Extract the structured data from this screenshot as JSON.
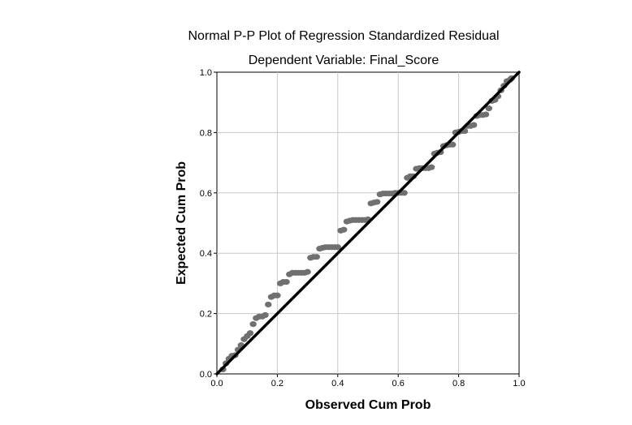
{
  "chart_data": {
    "type": "scatter",
    "title": "Normal P-P Plot of Regression Standardized Residual",
    "subtitle": "Dependent Variable: Final_Score",
    "xlabel": "Observed Cum Prob",
    "ylabel": "Expected Cum Prob",
    "xlim": [
      0.0,
      1.0
    ],
    "ylim": [
      0.0,
      1.0
    ],
    "x_ticks": [
      "0.0",
      "0.2",
      "0.4",
      "0.6",
      "0.8",
      "1.0"
    ],
    "y_ticks": [
      "0.0",
      "0.2",
      "0.4",
      "0.6",
      "0.8",
      "1.0"
    ],
    "grid": true,
    "reference_line": {
      "from": [
        0,
        0
      ],
      "to": [
        1,
        1
      ],
      "color": "#000000"
    },
    "point_color": "#707070",
    "points": [
      [
        0.02,
        0.015
      ],
      [
        0.03,
        0.035
      ],
      [
        0.04,
        0.05
      ],
      [
        0.05,
        0.06
      ],
      [
        0.06,
        0.062
      ],
      [
        0.07,
        0.08
      ],
      [
        0.08,
        0.095
      ],
      [
        0.09,
        0.115
      ],
      [
        0.1,
        0.125
      ],
      [
        0.11,
        0.135
      ],
      [
        0.12,
        0.165
      ],
      [
        0.13,
        0.185
      ],
      [
        0.14,
        0.19
      ],
      [
        0.15,
        0.19
      ],
      [
        0.16,
        0.195
      ],
      [
        0.17,
        0.23
      ],
      [
        0.18,
        0.255
      ],
      [
        0.19,
        0.26
      ],
      [
        0.2,
        0.26
      ],
      [
        0.21,
        0.3
      ],
      [
        0.22,
        0.305
      ],
      [
        0.23,
        0.305
      ],
      [
        0.24,
        0.33
      ],
      [
        0.25,
        0.335
      ],
      [
        0.26,
        0.335
      ],
      [
        0.27,
        0.335
      ],
      [
        0.28,
        0.335
      ],
      [
        0.29,
        0.335
      ],
      [
        0.3,
        0.338
      ],
      [
        0.31,
        0.385
      ],
      [
        0.32,
        0.388
      ],
      [
        0.33,
        0.388
      ],
      [
        0.34,
        0.415
      ],
      [
        0.35,
        0.418
      ],
      [
        0.36,
        0.42
      ],
      [
        0.37,
        0.42
      ],
      [
        0.38,
        0.42
      ],
      [
        0.39,
        0.42
      ],
      [
        0.4,
        0.42
      ],
      [
        0.41,
        0.475
      ],
      [
        0.42,
        0.478
      ],
      [
        0.43,
        0.505
      ],
      [
        0.44,
        0.508
      ],
      [
        0.45,
        0.51
      ],
      [
        0.46,
        0.51
      ],
      [
        0.47,
        0.51
      ],
      [
        0.48,
        0.51
      ],
      [
        0.49,
        0.51
      ],
      [
        0.5,
        0.512
      ],
      [
        0.51,
        0.565
      ],
      [
        0.52,
        0.568
      ],
      [
        0.53,
        0.57
      ],
      [
        0.54,
        0.595
      ],
      [
        0.55,
        0.598
      ],
      [
        0.56,
        0.598
      ],
      [
        0.57,
        0.598
      ],
      [
        0.58,
        0.598
      ],
      [
        0.59,
        0.6
      ],
      [
        0.6,
        0.6
      ],
      [
        0.61,
        0.6
      ],
      [
        0.62,
        0.6
      ],
      [
        0.63,
        0.65
      ],
      [
        0.64,
        0.655
      ],
      [
        0.65,
        0.655
      ],
      [
        0.66,
        0.68
      ],
      [
        0.67,
        0.682
      ],
      [
        0.68,
        0.682
      ],
      [
        0.69,
        0.682
      ],
      [
        0.7,
        0.682
      ],
      [
        0.71,
        0.685
      ],
      [
        0.72,
        0.73
      ],
      [
        0.73,
        0.733
      ],
      [
        0.74,
        0.735
      ],
      [
        0.75,
        0.755
      ],
      [
        0.76,
        0.758
      ],
      [
        0.77,
        0.76
      ],
      [
        0.78,
        0.76
      ],
      [
        0.79,
        0.8
      ],
      [
        0.8,
        0.802
      ],
      [
        0.81,
        0.805
      ],
      [
        0.82,
        0.805
      ],
      [
        0.83,
        0.822
      ],
      [
        0.84,
        0.822
      ],
      [
        0.85,
        0.825
      ],
      [
        0.86,
        0.855
      ],
      [
        0.87,
        0.858
      ],
      [
        0.88,
        0.858
      ],
      [
        0.89,
        0.86
      ],
      [
        0.9,
        0.88
      ],
      [
        0.91,
        0.905
      ],
      [
        0.92,
        0.908
      ],
      [
        0.93,
        0.92
      ],
      [
        0.94,
        0.94
      ],
      [
        0.95,
        0.955
      ],
      [
        0.96,
        0.97
      ],
      [
        0.97,
        0.975
      ],
      [
        0.975,
        0.98
      ]
    ]
  }
}
